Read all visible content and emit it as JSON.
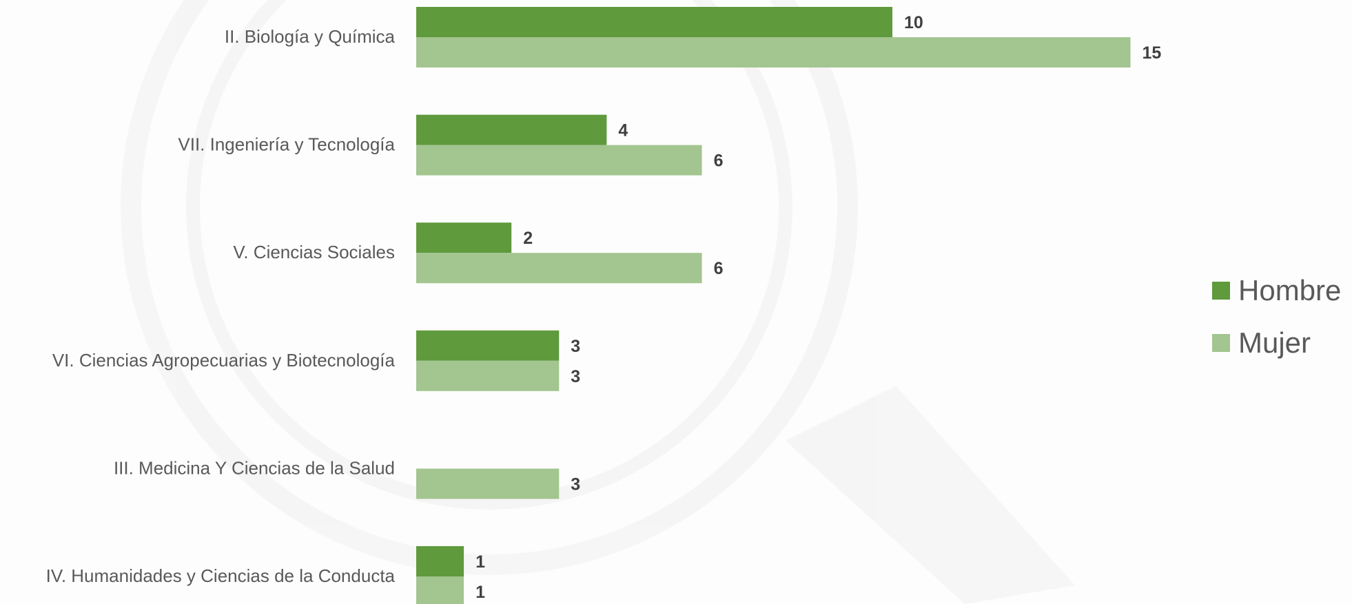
{
  "chart_data": {
    "type": "bar",
    "orientation": "horizontal",
    "categories": [
      "II. Biología y Química",
      "VII. Ingeniería y Tecnología",
      "V. Ciencias Sociales",
      "VI. Ciencias Agropecuarias y Biotecnología",
      "III. Medicina Y Ciencias de la Salud",
      "IV. Humanidades y Ciencias de la Conducta"
    ],
    "series": [
      {
        "name": "Hombre",
        "values": [
          10,
          4,
          2,
          3,
          0,
          1
        ],
        "color": "#5f9a3d"
      },
      {
        "name": "Mujer",
        "values": [
          15,
          6,
          6,
          3,
          3,
          1
        ],
        "color": "#a3c590"
      }
    ],
    "data_labels": {
      "Hombre": [
        "10",
        "4",
        "2",
        "3",
        "",
        "1"
      ],
      "Mujer": [
        "15",
        "6",
        "6",
        "3",
        "3",
        "1"
      ]
    },
    "xlim": [
      0,
      15
    ],
    "grid": false,
    "legend_position": "right"
  },
  "colors": {
    "hombre": "#5f9a3d",
    "mujer": "#a3c590",
    "label_text": "#595959",
    "value_text": "#404040"
  }
}
